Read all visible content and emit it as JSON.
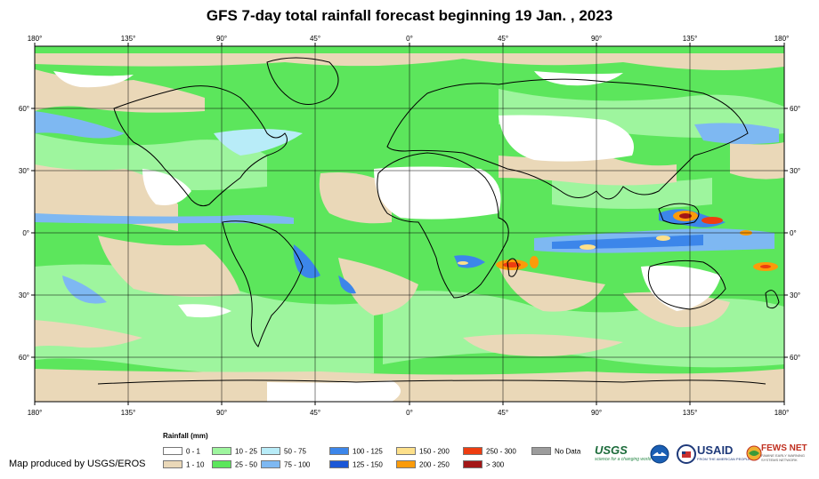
{
  "title": "GFS 7-day total rainfall forecast beginning 19 Jan. , 2023",
  "axes": {
    "top_lon_labels": [
      "180°",
      "135°",
      "90°",
      "45°",
      "0°",
      "45°",
      "90°",
      "135°",
      "180°"
    ],
    "bottom_lon_labels": [
      "180°",
      "135°",
      "90°",
      "45°",
      "0°",
      "45°",
      "90°",
      "135°",
      "180°"
    ],
    "left_lat_labels": [
      "60°",
      "30°",
      "0°",
      "30°",
      "60°"
    ],
    "right_lat_labels": [
      "60°",
      "30°",
      "0°",
      "30°",
      "60°"
    ]
  },
  "legend": {
    "title": "Rainfall (mm)",
    "items": [
      {
        "label": "0 - 1",
        "color": "#ffffff"
      },
      {
        "label": "1 - 10",
        "color": "#ead8b8"
      },
      {
        "label": "10 - 25",
        "color": "#9ef59e"
      },
      {
        "label": "25 - 50",
        "color": "#5ce65c"
      },
      {
        "label": "50 - 75",
        "color": "#b8ecf8"
      },
      {
        "label": "75 - 100",
        "color": "#7eb8f2"
      },
      {
        "label": "100 - 125",
        "color": "#3c86ea"
      },
      {
        "label": "125 - 150",
        "color": "#1b57d6"
      },
      {
        "label": "150 - 200",
        "color": "#fde08a"
      },
      {
        "label": "200 - 250",
        "color": "#fb9b0a"
      },
      {
        "label": "250 - 300",
        "color": "#ee3d10"
      },
      {
        "label": "> 300",
        "color": "#a31616"
      },
      {
        "label": "No Data",
        "color": "#9c9c9c"
      }
    ]
  },
  "credit": "Map produced by USGS/EROS",
  "logos": {
    "usgs": "USGS",
    "usgs_tagline": "science for a changing world",
    "usaid": "USAID",
    "usaid_tagline": "FROM THE AMERICAN PEOPLE",
    "fews": "FEWS NET",
    "fews_tagline": "FAMINE EARLY WARNING SYSTEMS NETWORK"
  },
  "colors": {
    "ocean_base": "#5ce65c",
    "light_rain": "#9ef59e",
    "dry": "#ead8b8",
    "coastline": "#000000",
    "graticule": "#000000"
  }
}
